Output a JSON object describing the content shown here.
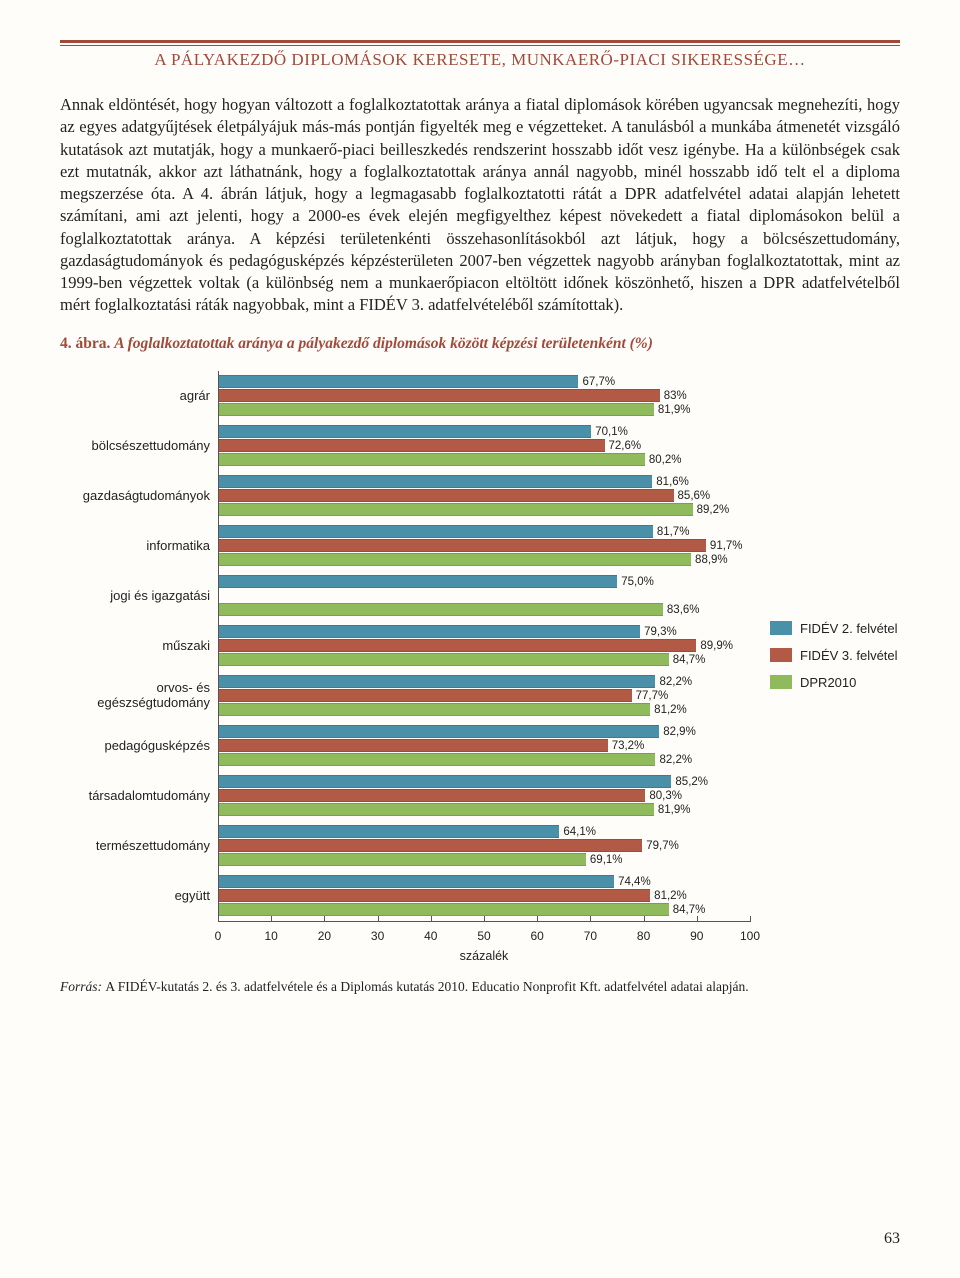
{
  "colors": {
    "accent": "#a14a3a",
    "s1": "#4a90a8",
    "s2": "#b35a47",
    "s3": "#8fbb5d",
    "bg": "#fefdf9"
  },
  "header": "A PÁLYAKEZDŐ DIPLOMÁSOK KERESETE, MUNKAERŐ-PIACI SIKERESSÉGE…",
  "body": "Annak eldöntését, hogy hogyan változott a foglalkoztatottak aránya a fiatal diplomások körében ugyancsak megnehezíti, hogy az egyes adatgyűjtések életpályájuk más-más pontján figyelték meg e végzetteket. A tanulásból a munkába átmenetét vizsgáló kutatások azt mutatják, hogy a munkaerő-piaci beilleszkedés rendszerint hosszabb időt vesz igénybe. Ha a különbségek csak ezt mutatnák, akkor azt láthatnánk, hogy a foglalkoztatottak aránya annál nagyobb, minél hosszabb idő telt el a diploma megszerzése óta. A 4. ábrán látjuk, hogy a legmagasabb foglalkoztatotti rátát a DPR adatfelvétel adatai alapján lehetett számítani, ami azt jelenti, hogy a 2000-es évek elején megfigyelthez képest növekedett a fiatal diplomásokon belül a foglalkoztatottak aránya. A képzési területenkénti összehasonlításokból azt látjuk, hogy a bölcsészettudomány, gazdaságtudományok és pedagógusképzés képzésterületen 2007-ben végzettek nagyobb arányban foglalkoztatottak, mint az 1999-ben végzettek voltak (a különbség nem a munkaerőpiacon eltöltött időnek köszönhető, hiszen a DPR adatfelvételből mért foglalkoztatási ráták nagyobbak, mint a FIDÉV 3. adatfelvételéből számítottak).",
  "figure": {
    "num": "4. ábra.",
    "title": "A foglalkoztatottak aránya a pályakezdő diplomások között képzési területenként (%)"
  },
  "chart": {
    "xmin": 0,
    "xmax": 100,
    "xtick_step": 10,
    "xlabel": "százalék",
    "categories": [
      {
        "label": "agrár",
        "v": [
          67.7,
          83,
          81.9
        ],
        "fmt": [
          "67,7%",
          "83%",
          "81,9%"
        ]
      },
      {
        "label": "bölcsészettudomány",
        "v": [
          70.1,
          72.6,
          80.2
        ],
        "fmt": [
          "70,1%",
          "72,6%",
          "80,2%"
        ]
      },
      {
        "label": "gazdaságtudományok",
        "v": [
          81.6,
          85.6,
          89.2
        ],
        "fmt": [
          "81,6%",
          "85,6%",
          "89,2%"
        ]
      },
      {
        "label": "informatika",
        "v": [
          81.7,
          91.7,
          88.9
        ],
        "fmt": [
          "81,7%",
          "91,7%",
          "88,9%"
        ]
      },
      {
        "label": "jogi és igazgatási",
        "v": [
          75.0,
          null,
          83.6
        ],
        "fmt": [
          "75,0%",
          "",
          "83,6%"
        ]
      },
      {
        "label": "műszaki",
        "v": [
          79.3,
          89.9,
          84.7
        ],
        "fmt": [
          "79,3%",
          "89,9%",
          "84,7%"
        ]
      },
      {
        "label": "orvos- és egészségtudomány",
        "v": [
          82.2,
          77.7,
          81.2
        ],
        "fmt": [
          "82,2%",
          "77,7%",
          "81,2%"
        ]
      },
      {
        "label": "pedagógusképzés",
        "v": [
          82.9,
          73.2,
          82.2
        ],
        "fmt": [
          "82,9%",
          "73,2%",
          "82,2%"
        ]
      },
      {
        "label": "társadalomtudomány",
        "v": [
          85.2,
          80.3,
          81.9
        ],
        "fmt": [
          "85,2%",
          "80,3%",
          "81,9%"
        ]
      },
      {
        "label": "természettudomány",
        "v": [
          64.1,
          79.7,
          69.1
        ],
        "fmt": [
          "64,1%",
          "79,7%",
          "69,1%"
        ]
      },
      {
        "label": "együtt",
        "v": [
          74.4,
          81.2,
          84.7
        ],
        "fmt": [
          "74,4%",
          "81,2%",
          "84,7%"
        ]
      }
    ],
    "series": [
      {
        "name": "FIDÉV 2. felvétel",
        "color": "#4a90a8"
      },
      {
        "name": "FIDÉV 3. felvétel",
        "color": "#b35a47"
      },
      {
        "name": "DPR2010",
        "color": "#8fbb5d"
      }
    ]
  },
  "source": {
    "label": "Forrás:",
    "text": "A FIDÉV-kutatás 2. és 3. adatfelvétele és a Diplomás kutatás 2010. Educatio Nonprofit Kft. adatfelvétel adatai alapján."
  },
  "page": "63"
}
